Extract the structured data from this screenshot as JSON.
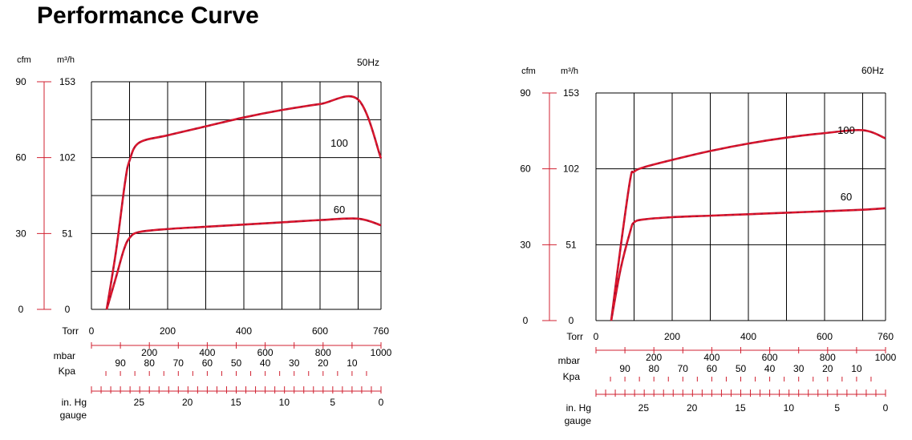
{
  "page": {
    "title": "Performance Curve"
  },
  "colors": {
    "curve": "#e8192c",
    "curve_shade": "#b80f2c",
    "axis": "#d02030",
    "grid": "#000000"
  },
  "chart_data": [
    {
      "type": "line",
      "frequency_label": "50Hz",
      "x_unit_label": "Torr",
      "x_range": [
        0,
        760
      ],
      "x_ticks": [
        0,
        200,
        400,
        600,
        760
      ],
      "y_units": [
        "cfm",
        "m³/h"
      ],
      "y_range_m3h": [
        0,
        153
      ],
      "y_ticks_cfm": [
        0,
        30,
        60,
        90
      ],
      "y_ticks_m3h": [
        0,
        51,
        102,
        153
      ],
      "grid": true,
      "series": [
        {
          "name": "100",
          "x": [
            40,
            65,
            88,
            100,
            125,
            200,
            300,
            400,
            500,
            600,
            700,
            760
          ],
          "y": [
            0,
            40,
            85,
            100,
            112,
            117,
            123,
            129,
            134,
            138,
            141,
            101.5
          ]
        },
        {
          "name": "60",
          "x": [
            40,
            65,
            85,
            100,
            125,
            200,
            300,
            400,
            500,
            600,
            700,
            760
          ],
          "y": [
            0,
            22,
            40,
            48,
            52,
            54,
            55.5,
            57,
            58.5,
            60,
            61,
            56.5
          ]
        }
      ],
      "scales": [
        {
          "label": "mbar",
          "ticks": [
            200,
            400,
            600,
            800,
            1000
          ]
        },
        {
          "label": "Kpa",
          "ticks": [
            90,
            80,
            70,
            60,
            50,
            40,
            30,
            20,
            10
          ]
        },
        {
          "label": "in. Hg",
          "sublabel": "gauge",
          "ticks": [
            25,
            20,
            15,
            10,
            5,
            0
          ]
        }
      ]
    },
    {
      "type": "line",
      "frequency_label": "60Hz",
      "x_unit_label": "Torr",
      "x_range": [
        0,
        760
      ],
      "x_ticks": [
        0,
        200,
        400,
        600,
        760
      ],
      "y_units": [
        "cfm",
        "m³/h"
      ],
      "y_range_m3h": [
        0,
        153
      ],
      "y_ticks_cfm": [
        0,
        30,
        60,
        90
      ],
      "y_ticks_m3h": [
        0,
        51,
        102,
        153
      ],
      "grid": true,
      "series": [
        {
          "name": "100",
          "x": [
            40,
            65,
            90,
            100,
            125,
            200,
            300,
            400,
            500,
            600,
            700,
            760
          ],
          "y": [
            0,
            50,
            95,
            100,
            103,
            108,
            114,
            119,
            123,
            126,
            128,
            122.5
          ]
        },
        {
          "name": "60",
          "x": [
            40,
            65,
            90,
            100,
            125,
            200,
            300,
            400,
            500,
            600,
            700,
            760
          ],
          "y": [
            0,
            35,
            60,
            66,
            68,
            69.5,
            70.5,
            71.5,
            72.5,
            73.5,
            74.5,
            75.5
          ]
        }
      ],
      "scales": [
        {
          "label": "mbar",
          "ticks": [
            200,
            400,
            600,
            800,
            1000
          ]
        },
        {
          "label": "Kpa",
          "ticks": [
            90,
            80,
            70,
            60,
            50,
            40,
            30,
            20,
            10
          ]
        },
        {
          "label": "in. Hg",
          "sublabel": "gauge",
          "ticks": [
            25,
            20,
            15,
            10,
            5,
            0
          ]
        }
      ]
    }
  ]
}
